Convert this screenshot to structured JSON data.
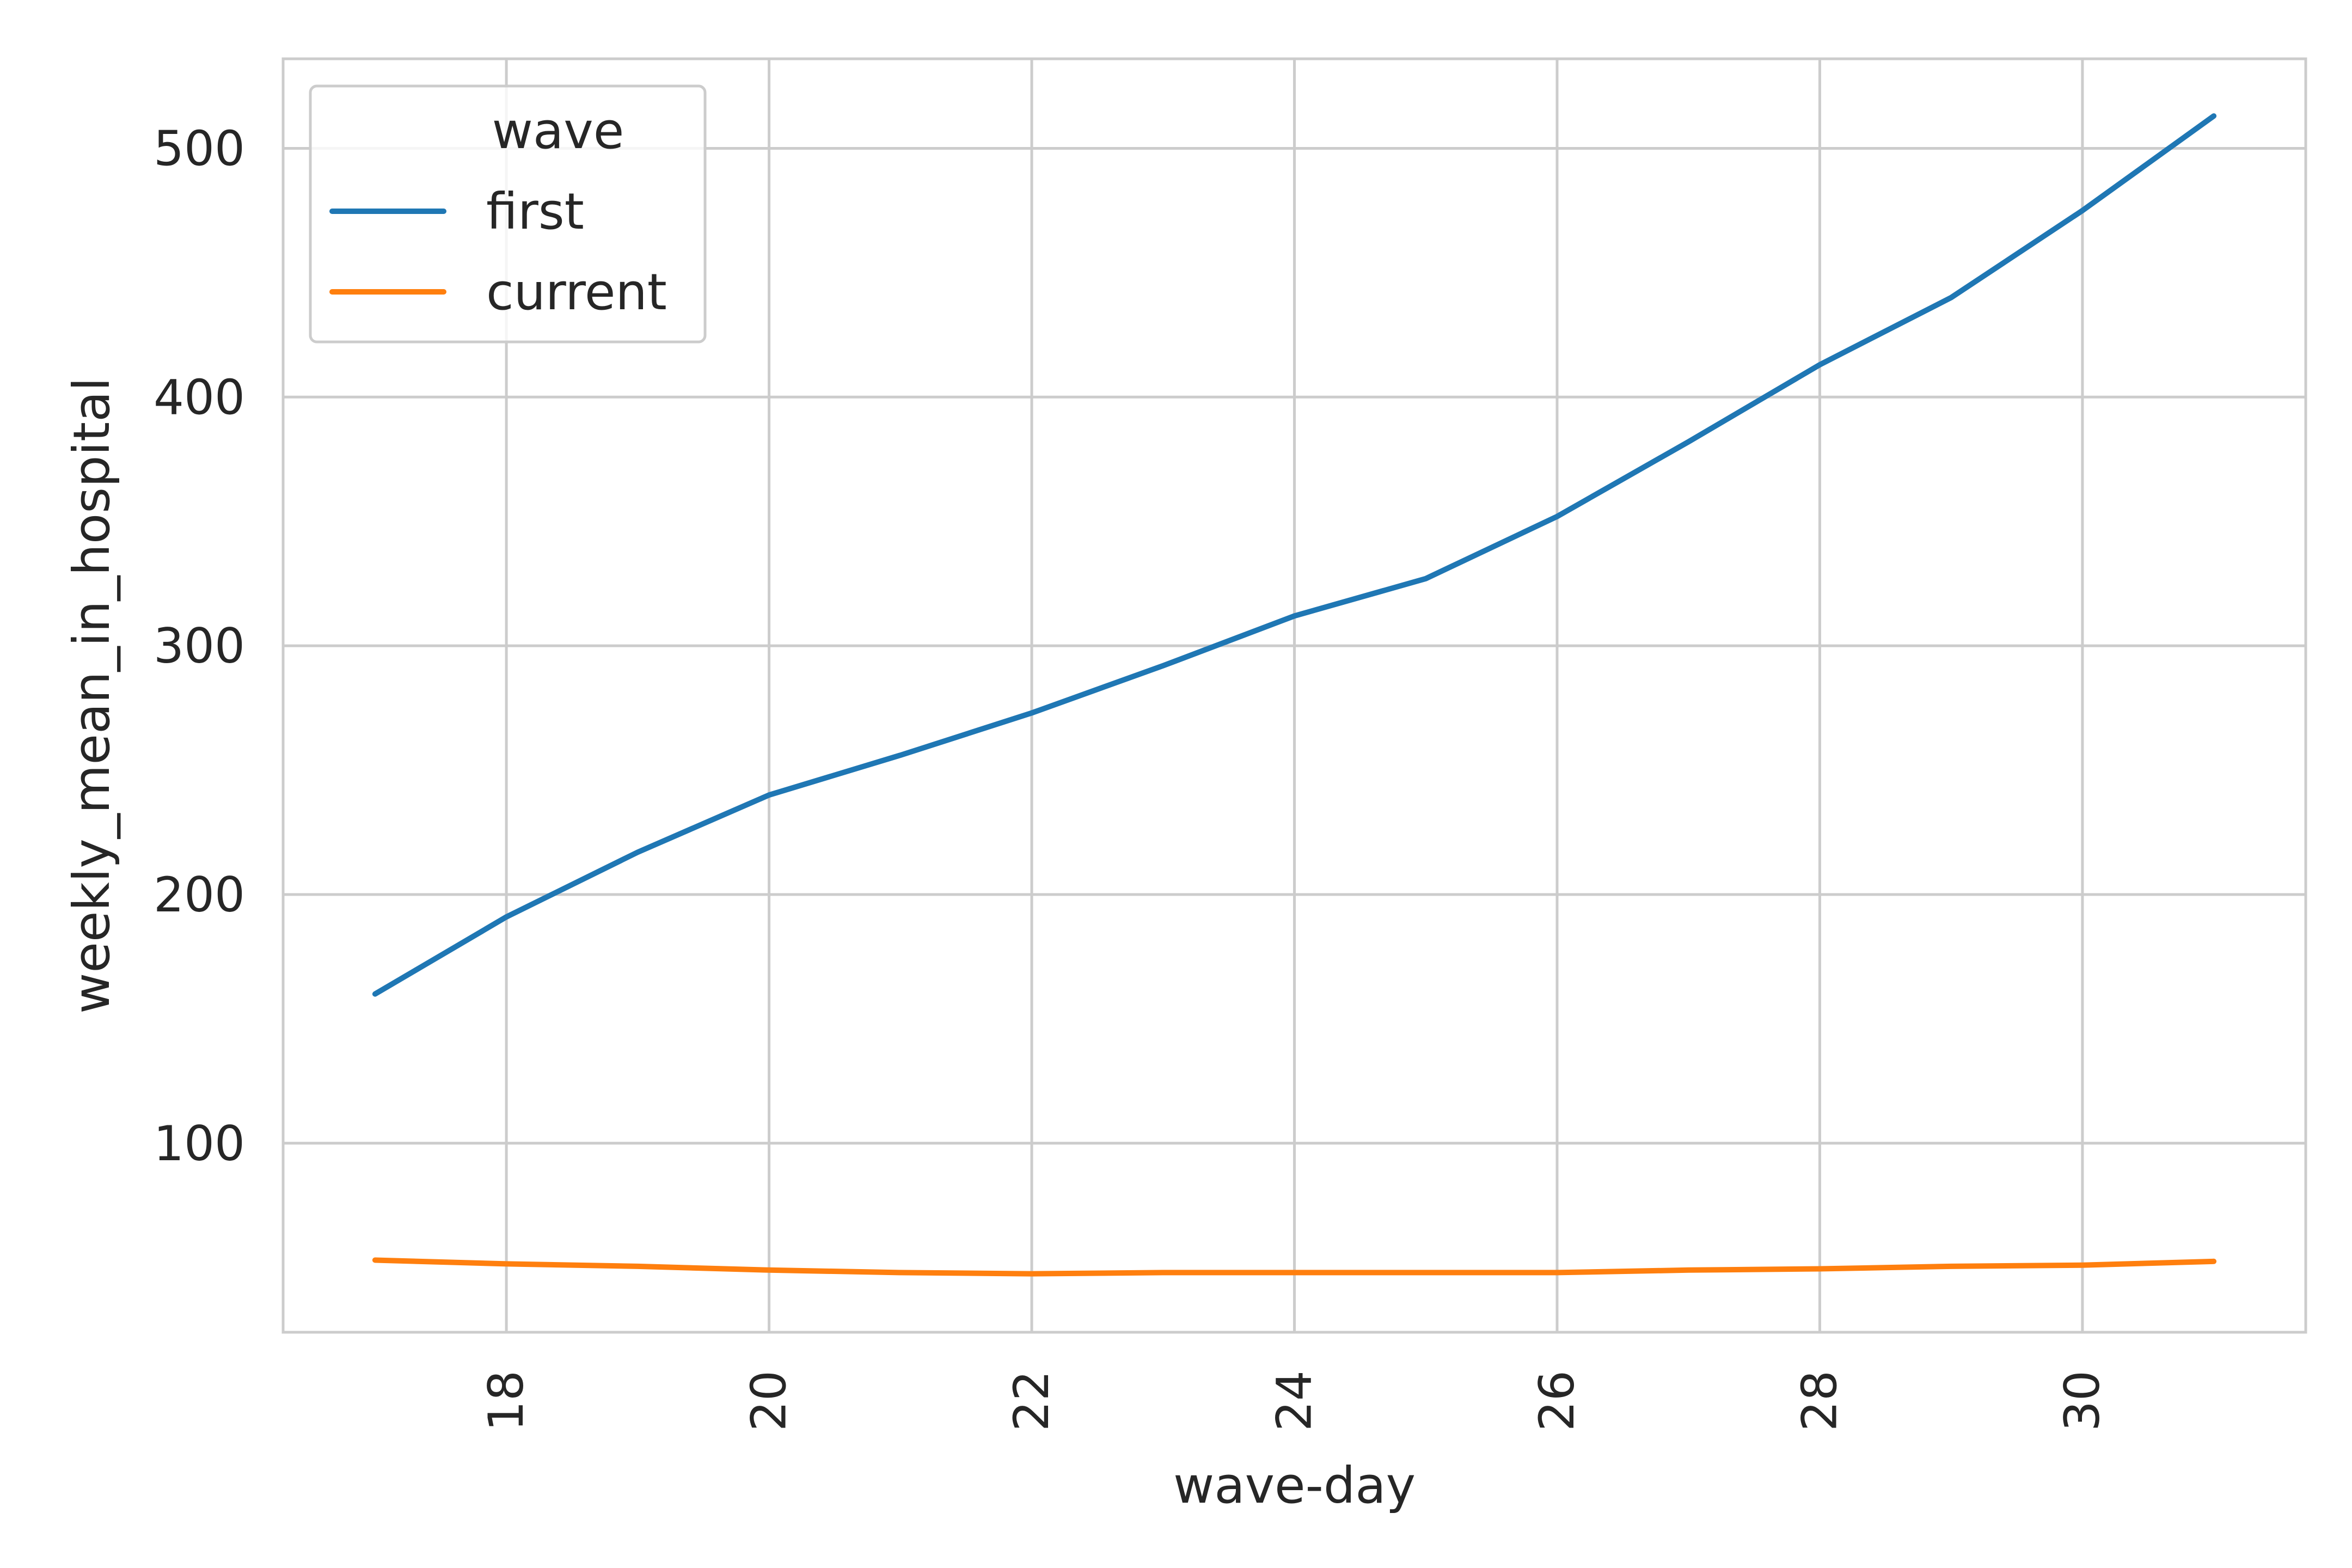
{
  "chart_data": {
    "type": "line",
    "xlabel": "wave-day",
    "ylabel": "weekly_mean_in_hospital",
    "xlim": [
      16.3,
      31.7
    ],
    "ylim": [
      24,
      536
    ],
    "xticks": [
      18,
      20,
      22,
      24,
      26,
      28,
      30
    ],
    "yticks": [
      100,
      200,
      300,
      400,
      500
    ],
    "grid": true,
    "legend": {
      "title": "wave",
      "placement": "top-left"
    },
    "x": [
      17,
      18,
      19,
      20,
      21,
      22,
      23,
      24,
      25,
      26,
      27,
      28,
      29,
      30,
      31
    ],
    "series": [
      {
        "name": "first",
        "color": "#1f77b4",
        "values": [
          160,
          191,
          217,
          240,
          256,
          273,
          292,
          312,
          327,
          352,
          382,
          413,
          440,
          475,
          513
        ]
      },
      {
        "name": "current",
        "color": "#ff7f0e",
        "values": [
          53,
          51.5,
          50.5,
          49,
          48,
          47.5,
          48,
          48,
          48,
          48,
          49,
          49.5,
          50.5,
          51,
          52.5
        ]
      }
    ]
  }
}
